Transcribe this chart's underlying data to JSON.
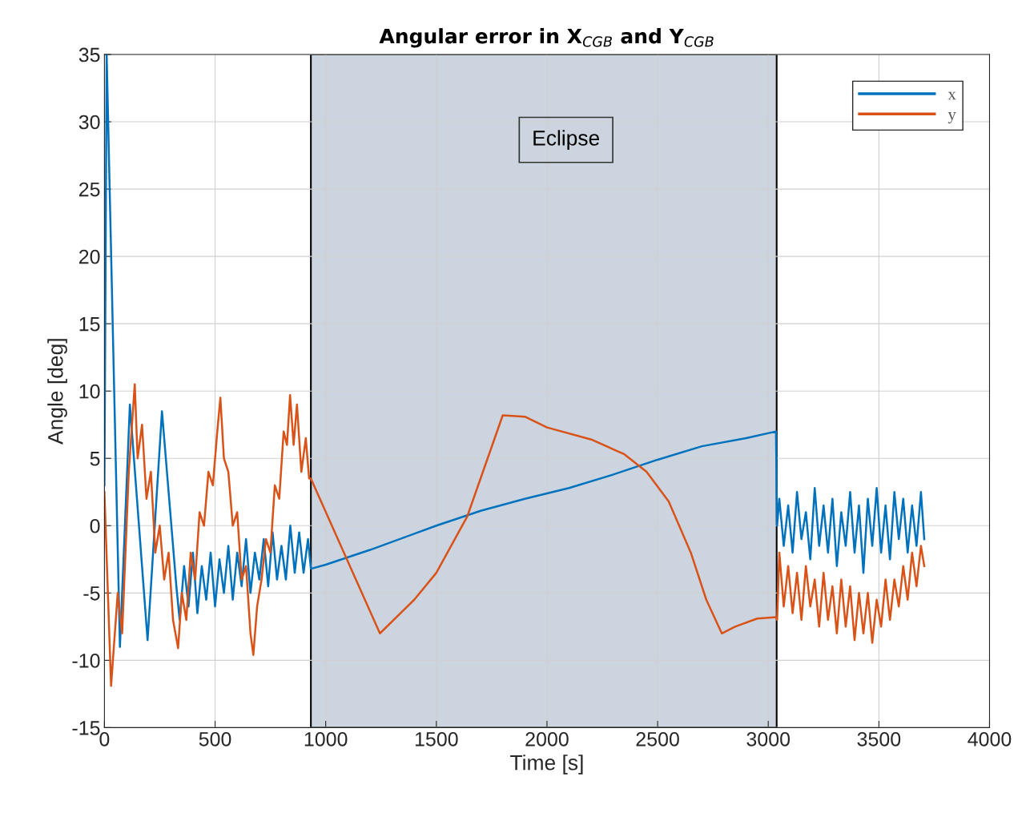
{
  "chart_data": {
    "type": "line",
    "title": "Angular error in X$_{CGB}$ and Y$_{CGB}$",
    "xlabel": "Time [s]",
    "ylabel": "Angle [deg]",
    "xlim": [
      0,
      4000
    ],
    "xticks": [
      0,
      500,
      1000,
      1500,
      2000,
      2500,
      3000,
      3500,
      4000
    ],
    "ylim": [
      -15,
      35
    ],
    "yticks": [
      -15,
      -10,
      -5,
      0,
      5,
      10,
      15,
      20,
      25,
      30,
      35
    ],
    "grid": true,
    "legend": "top right",
    "line_style": "solid",
    "marker": "none",
    "bands": [
      {
        "axis": "x",
        "from": 933,
        "to": 3038,
        "color": "#cbd4df"
      }
    ],
    "annotations": [
      "Eclipse"
    ],
    "series": [
      {
        "name": "x",
        "color": "#0072bd",
        "x": [
          0,
          10,
          70,
          115,
          195,
          260,
          325,
          340,
          360,
          380,
          400,
          420,
          440,
          460,
          480,
          500,
          520,
          540,
          560,
          580,
          600,
          620,
          640,
          660,
          680,
          700,
          720,
          740,
          760,
          780,
          800,
          820,
          840,
          860,
          880,
          900,
          920,
          933,
          1000,
          1200,
          1400,
          1500,
          1700,
          1900,
          2100,
          2300,
          2500,
          2700,
          2900,
          3035,
          3040,
          3050,
          3070,
          3090,
          3110,
          3130,
          3150,
          3170,
          3190,
          3210,
          3230,
          3250,
          3270,
          3290,
          3310,
          3330,
          3350,
          3370,
          3390,
          3410,
          3430,
          3450,
          3470,
          3490,
          3510,
          3530,
          3550,
          3570,
          3590,
          3610,
          3630,
          3650,
          3670,
          3690,
          3705
        ],
        "values": [
          3,
          35,
          -9,
          9,
          -8.5,
          8.5,
          -4.5,
          -7,
          -3,
          -6,
          -2,
          -6.5,
          -3,
          -5.5,
          -2,
          -6,
          -2.5,
          -5,
          -1.5,
          -5.5,
          -2,
          -4.5,
          -1,
          -5,
          -2,
          -4,
          -1,
          -4.5,
          -0.5,
          -4,
          -1.5,
          -4,
          0,
          -3.5,
          -0.5,
          -3.5,
          -1,
          -3.2,
          -2.9,
          -1.8,
          -0.6,
          0,
          1.1,
          2,
          2.8,
          3.8,
          4.9,
          5.9,
          6.5,
          7,
          0,
          2,
          -1.5,
          1.5,
          -2,
          2.5,
          -1,
          1,
          -2.5,
          2.8,
          -1.5,
          1.5,
          -2,
          2,
          -3,
          1,
          -1.5,
          2.5,
          -2,
          1.5,
          -3.5,
          2,
          -1.5,
          2.8,
          -2,
          1.5,
          -2.5,
          2.5,
          -1,
          2,
          -2,
          1.5,
          -1.5,
          2.5,
          -1
        ]
      },
      {
        "name": "y",
        "color": "#d95319",
        "x": [
          0,
          30,
          60,
          80,
          110,
          137,
          150,
          170,
          190,
          210,
          230,
          250,
          270,
          290,
          310,
          333,
          350,
          370,
          390,
          410,
          430,
          450,
          470,
          490,
          510,
          524,
          540,
          560,
          580,
          600,
          620,
          640,
          660,
          673,
          690,
          710,
          730,
          750,
          770,
          790,
          810,
          825,
          839,
          855,
          870,
          890,
          910,
          925,
          933,
          1245,
          1400,
          1500,
          1640,
          1800,
          1900,
          2000,
          2200,
          2350,
          2450,
          2550,
          2650,
          2720,
          2790,
          2850,
          2950,
          3035,
          3040,
          3050,
          3070,
          3090,
          3110,
          3130,
          3150,
          3170,
          3190,
          3210,
          3230,
          3250,
          3270,
          3290,
          3310,
          3330,
          3350,
          3370,
          3390,
          3410,
          3430,
          3450,
          3470,
          3490,
          3510,
          3530,
          3550,
          3570,
          3590,
          3610,
          3630,
          3650,
          3670,
          3690,
          3705
        ],
        "values": [
          2.5,
          -11.9,
          -5,
          -8,
          4,
          10.5,
          5,
          7.5,
          2,
          4,
          -2,
          0,
          -4,
          -2,
          -7,
          -9.1,
          -5,
          -7,
          -2,
          -4,
          1,
          0,
          4,
          3,
          7,
          9.5,
          5,
          4,
          0,
          1,
          -4,
          -3,
          -8,
          -9.6,
          -6,
          -4,
          -1,
          -2,
          3,
          2,
          7,
          6,
          9.7,
          6,
          9,
          4,
          6.5,
          3.5,
          3.5,
          -8,
          -5.5,
          -3.5,
          0.7,
          8.2,
          8.1,
          7.3,
          6.4,
          5.3,
          4,
          1.8,
          -2,
          -5.5,
          -8,
          -7.5,
          -6.9,
          -6.8,
          -7,
          -2,
          -6,
          -3,
          -6.5,
          -3.5,
          -7,
          -3,
          -6,
          -4,
          -7.5,
          -3.5,
          -7,
          -4.5,
          -8,
          -4,
          -7.5,
          -4.5,
          -8.5,
          -5,
          -8,
          -5,
          -8.7,
          -5.5,
          -7.5,
          -4,
          -7,
          -4,
          -6,
          -3,
          -5.5,
          -2,
          -4.5,
          -1.5,
          -3
        ]
      }
    ]
  }
}
